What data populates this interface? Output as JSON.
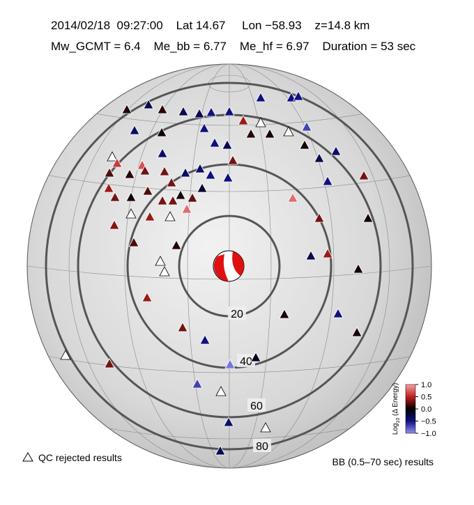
{
  "header": {
    "line1": "2014/02/18  09:27:00    Lat 14.67     Lon −58.93    z=14.8 km",
    "line2": "Mw_GCMT = 6.4    Me_bb = 6.77    Me_hf = 6.97    Duration = 53 sec"
  },
  "distance_rings": [
    20,
    40,
    60,
    80
  ],
  "stations": [
    0.1,
    -0.3,
    0.1,
    -0.4,
    0.05,
    null,
    0.6,
    0.7,
    -0.4,
    0.2,
    0.1,
    0.3,
    0.3,
    0.3,
    -0.4,
    -0.4,
    -0.5,
    -0.5,
    0.4,
    0.3,
    0.05,
    0.2,
    0.3,
    0.3,
    0.05,
    0.25,
    0.8,
    -0.2,
    null,
    null,
    0.4,
    0.35,
    0.2,
    0.1,
    null,
    null,
    0.4,
    0.3,
    -0.5,
    -0.9,
    -0.1,
    -0.7,
    null,
    -0.4,
    -0.3,
    null,
    null,
    0.3,
    0.05,
    -0.5,
    0.05,
    -0.3,
    0.4,
    0.05,
    0.3,
    0.8,
    -0.5,
    0.3,
    0.05,
    -0.3,
    -0.4,
    0.05,
    null,
    0.05,
    0.1,
    0.4,
    null,
    -0.7,
    -0.5,
    -0.5,
    -0.5,
    -0.5,
    -0.5,
    -0.5,
    -0.5,
    -0.3,
    0.3,
    -0.3,
    -0.3
  ],
  "colorbar": {
    "label_main": "Log",
    "label_sub": "10",
    "label_rest": " (Δ Energy)",
    "ticks": [
      {
        "value": 1,
        "label": "1.0"
      },
      {
        "value": 0.5,
        "label": "0.5"
      },
      {
        "value": 0,
        "label": "0.0"
      },
      {
        "value": -0.5,
        "label": "−0.5"
      },
      {
        "value": -1,
        "label": "−1.0"
      }
    ]
  },
  "legend": {
    "rejected": "QC rejected results",
    "bb": "BB (0.5–70 sec) results"
  }
}
